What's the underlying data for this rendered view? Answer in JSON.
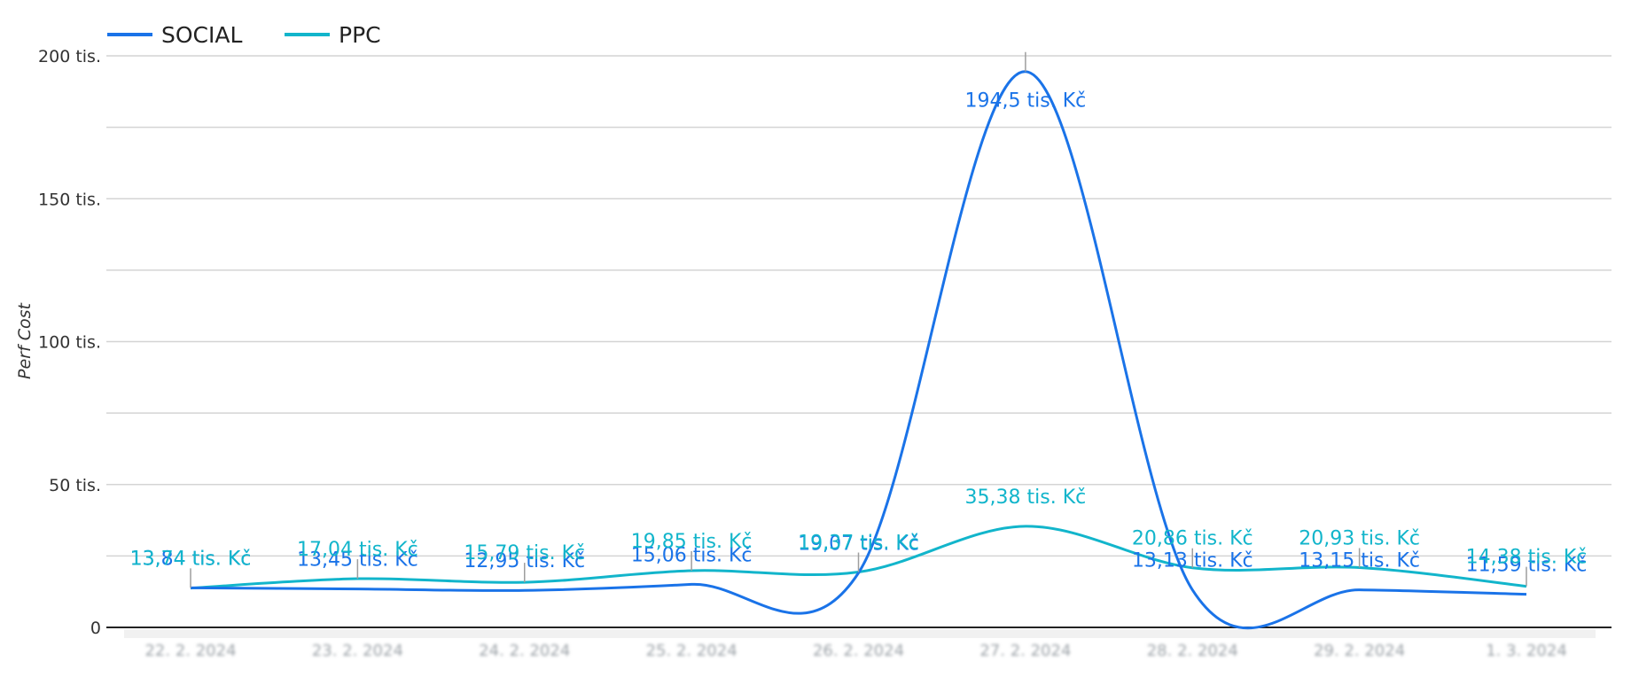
{
  "chart_data": {
    "type": "line",
    "ylabel": "Perf Cost",
    "ylim": [
      0,
      200000
    ],
    "yticks": [
      {
        "value": 0,
        "label": "0"
      },
      {
        "value": 50000,
        "label": "50 tis."
      },
      {
        "value": 100000,
        "label": "100 tis."
      },
      {
        "value": 150000,
        "label": "150 tis."
      },
      {
        "value": 200000,
        "label": "200 tis."
      }
    ],
    "categories": [
      "22. 2. 2024",
      "23. 2. 2024",
      "24. 2. 2024",
      "25. 2. 2024",
      "26. 2. 2024",
      "27. 2. 2024",
      "28. 2. 2024",
      "29. 2. 2024",
      "1. 3. 2024"
    ],
    "legend_position": "top-left",
    "grid": true,
    "series": [
      {
        "name": "SOCIAL",
        "color": "#1a73e8",
        "values": [
          13840,
          13450,
          12950,
          15060,
          19070,
          194500,
          13130,
          13150,
          11590
        ],
        "labels": [
          "13,84 tis. Kč",
          "13,45 tis. Kč",
          "12,95 tis. Kč",
          "15,06 tis. Kč",
          "19,07 tis. Kč",
          "194,5 tis. Kč",
          "13,13 tis. Kč",
          "13,15 tis. Kč",
          "11,59 tis. Kč"
        ]
      },
      {
        "name": "PPC",
        "color": "#12b5cb",
        "values": [
          13740,
          17040,
          15790,
          19850,
          19370,
          35380,
          20860,
          20930,
          14380
        ],
        "labels": [
          "13,74 tis. Kč",
          "17,04 tis. Kč",
          "15,79 tis. Kč",
          "19,85 tis. Kč",
          "19,37 tis. Kč",
          "35,38 tis. Kč",
          "20,86 tis. Kč",
          "20,93 tis. Kč",
          "14,38 tis. Kč"
        ]
      }
    ]
  }
}
